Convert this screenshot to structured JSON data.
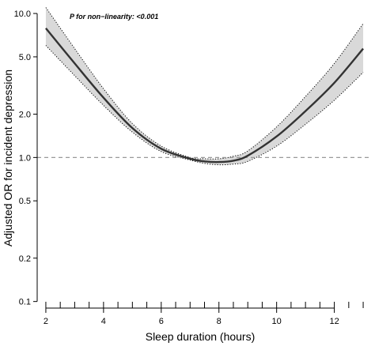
{
  "chart_data": {
    "type": "line",
    "title": "",
    "xlabel": "Sleep duration (hours)",
    "ylabel": "Adjusted OR for incident depression",
    "annotation": "P for non−linearity: <0.001",
    "y_scale": "log",
    "xlim": [
      1.7,
      13.3
    ],
    "ylim": [
      0.09,
      11.5
    ],
    "x_ticks": [
      2,
      4,
      6,
      8,
      10,
      12
    ],
    "y_ticks": [
      0.1,
      0.2,
      0.5,
      1.0,
      2.0,
      5.0,
      10.0
    ],
    "y_tick_labels": [
      "0.1",
      "0.2",
      "0.5",
      "1.0",
      "2.0",
      "5.0",
      "10.0"
    ],
    "reference_line": 1.0,
    "grid": false,
    "series": [
      {
        "x": [
          2,
          3,
          4,
          5,
          6,
          7,
          7.5,
          8,
          8.5,
          9,
          10,
          11,
          12,
          13
        ],
        "y": [
          7.9,
          4.5,
          2.6,
          1.6,
          1.15,
          0.98,
          0.94,
          0.93,
          0.95,
          1.03,
          1.4,
          2.1,
          3.3,
          5.7
        ],
        "lower": [
          6.0,
          3.7,
          2.3,
          1.5,
          1.1,
          0.96,
          0.91,
          0.89,
          0.9,
          0.94,
          1.2,
          1.7,
          2.5,
          3.9
        ],
        "upper": [
          11.0,
          5.7,
          3.0,
          1.72,
          1.2,
          1.0,
          0.98,
          0.98,
          1.02,
          1.11,
          1.63,
          2.65,
          4.5,
          8.5
        ]
      }
    ],
    "rug_x": [
      2,
      2.5,
      3,
      3.5,
      4,
      4.5,
      5,
      5.5,
      6,
      6.5,
      7,
      7.5,
      8,
      8.5,
      9,
      9.5,
      10,
      10.5,
      11,
      11.5,
      12,
      12.5,
      13
    ]
  }
}
